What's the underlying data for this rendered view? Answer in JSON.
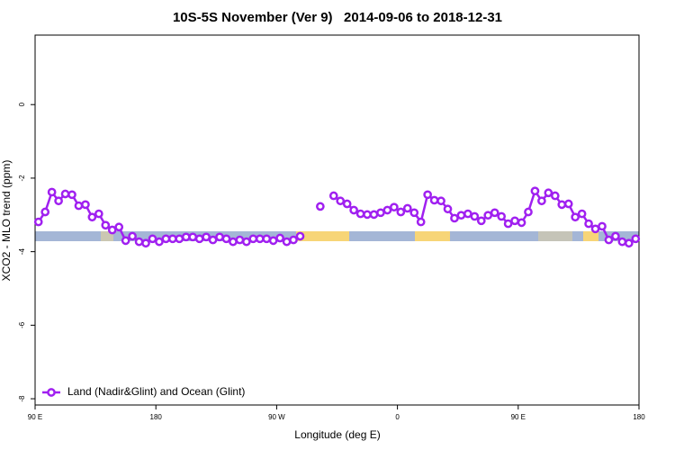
{
  "chart_data": {
    "type": "line",
    "title": "10S-5S November (Ver 9)   2014-09-06 to 2018-12-31",
    "x_label": "Longitude (deg E)",
    "y_label": "XCO2 - MLO trend (ppm)",
    "x": [
      92.5,
      97.5,
      102.5,
      107.5,
      112.5,
      117.5,
      122.5,
      127.5,
      132.5,
      137.5,
      142.5,
      147.5,
      152.5,
      157.5,
      162.5,
      167.5,
      172.5,
      177.5,
      182.5,
      187.5,
      192.5,
      197.5,
      202.5,
      207.5,
      212.5,
      217.5,
      222.5,
      227.5,
      232.5,
      237.5,
      242.5,
      247.5,
      252.5,
      257.5,
      262.5,
      267.5,
      272.5,
      277.5,
      282.5,
      287.5,
      292.5,
      297.5,
      302.5,
      307.5,
      312.5,
      317.5,
      322.5,
      327.5,
      332.5,
      337.5,
      342.5,
      347.5,
      352.5,
      357.5,
      362.5,
      367.5,
      372.5,
      377.5,
      382.5,
      387.5,
      392.5,
      397.5,
      402.5,
      407.5,
      412.5,
      417.5,
      422.5,
      427.5,
      432.5,
      437.5,
      442.5,
      447.5,
      452.5,
      457.5,
      462.5,
      467.5,
      472.5,
      477.5,
      482.5,
      487.5,
      492.5,
      497.5,
      502.5,
      507.5,
      512.5,
      517.5,
      522.5,
      527.5,
      532.5,
      537.5
    ],
    "series": [
      {
        "name": "Land (Nadir&Glint) and Ocean (Glint)",
        "color": "#a020f0",
        "values": [
          -3.19,
          -2.92,
          -2.38,
          -2.62,
          -2.43,
          -2.45,
          -2.75,
          -2.72,
          -3.06,
          -2.97,
          -3.28,
          -3.41,
          -3.33,
          -3.7,
          -3.58,
          -3.73,
          -3.77,
          -3.65,
          -3.73,
          -3.65,
          -3.65,
          -3.65,
          -3.6,
          -3.6,
          -3.65,
          -3.6,
          -3.68,
          -3.6,
          -3.65,
          -3.73,
          -3.68,
          -3.73,
          -3.65,
          -3.65,
          -3.65,
          -3.7,
          -3.63,
          -3.73,
          -3.68,
          -3.58,
          null,
          null,
          -2.77,
          null,
          -2.48,
          -2.62,
          -2.7,
          -2.87,
          -2.97,
          -2.99,
          -2.99,
          -2.94,
          -2.87,
          -2.79,
          -2.92,
          -2.82,
          -2.94,
          -3.19,
          -2.45,
          -2.6,
          -2.62,
          -2.84,
          -3.09,
          -3.01,
          -2.97,
          -3.04,
          -3.16,
          -3.01,
          -2.94,
          -3.04,
          -3.24,
          -3.16,
          -3.21,
          -2.92,
          -2.35,
          -2.62,
          -2.4,
          -2.48,
          -2.72,
          -2.7,
          -3.06,
          -2.97,
          -3.24,
          -3.38,
          -3.31,
          -3.68,
          -3.58,
          -3.73,
          -3.77,
          -3.65
        ]
      }
    ],
    "xlim": [
      90,
      540
    ],
    "xticks": [
      {
        "value": 90,
        "label": "90 E"
      },
      {
        "value": 180,
        "label": "180"
      },
      {
        "value": 270,
        "label": "90 W"
      },
      {
        "value": 360,
        "label": "0"
      },
      {
        "value": 450,
        "label": "90 E"
      },
      {
        "value": 540,
        "label": "180"
      }
    ],
    "ylim": [
      -8.17,
      1.89
    ],
    "yticks": [
      0,
      -2,
      -4,
      -6,
      -8
    ],
    "legend": "bottom-left"
  }
}
